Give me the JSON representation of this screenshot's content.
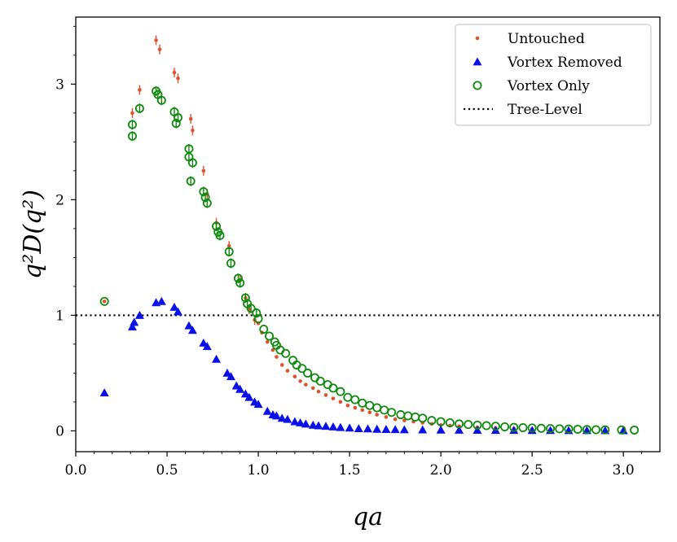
{
  "chart_data": {
    "type": "scatter",
    "xlabel": "qa",
    "ylabel": "q²D(q²)",
    "xlim": [
      0.0,
      3.2
    ],
    "ylim": [
      -0.18,
      3.58
    ],
    "xticks": [
      0.0,
      0.5,
      1.0,
      1.5,
      2.0,
      2.5,
      3.0
    ],
    "xtick_labels": [
      "0.0",
      "0.5",
      "1.0",
      "1.5",
      "2.0",
      "2.5",
      "3.0"
    ],
    "yticks": [
      0,
      1,
      2,
      3
    ],
    "ytick_labels": [
      "0",
      "1",
      "2",
      "3"
    ],
    "legend_position": "top-right",
    "reference_line": {
      "name": "Tree-Level",
      "y": 1.0,
      "style": "dotted",
      "color": "#000000"
    },
    "series": [
      {
        "name": "Untouched",
        "marker": "dot",
        "color": "#e0522e",
        "points": [
          [
            0.157,
            1.12
          ],
          [
            0.31,
            2.75
          ],
          [
            0.35,
            2.95
          ],
          [
            0.44,
            3.38
          ],
          [
            0.46,
            3.3
          ],
          [
            0.54,
            3.1
          ],
          [
            0.56,
            3.05
          ],
          [
            0.63,
            2.7
          ],
          [
            0.64,
            2.6
          ],
          [
            0.7,
            2.25
          ],
          [
            0.72,
            2.05
          ],
          [
            0.77,
            1.8
          ],
          [
            0.84,
            1.6
          ],
          [
            0.9,
            1.3
          ],
          [
            0.93,
            1.15
          ],
          [
            0.95,
            1.05
          ],
          [
            0.98,
            0.96
          ],
          [
            1.0,
            0.93
          ],
          [
            1.02,
            0.85
          ],
          [
            1.05,
            0.77
          ],
          [
            1.08,
            0.7
          ],
          [
            1.1,
            0.64
          ],
          [
            1.13,
            0.57
          ],
          [
            1.16,
            0.52
          ],
          [
            1.2,
            0.47
          ],
          [
            1.23,
            0.43
          ],
          [
            1.26,
            0.4
          ],
          [
            1.3,
            0.37
          ],
          [
            1.33,
            0.34
          ],
          [
            1.37,
            0.31
          ],
          [
            1.41,
            0.28
          ],
          [
            1.45,
            0.25
          ],
          [
            1.49,
            0.22
          ],
          [
            1.53,
            0.2
          ],
          [
            1.57,
            0.18
          ],
          [
            1.61,
            0.16
          ],
          [
            1.65,
            0.14
          ],
          [
            1.7,
            0.12
          ],
          [
            1.75,
            0.1
          ],
          [
            1.8,
            0.09
          ],
          [
            1.85,
            0.08
          ],
          [
            1.9,
            0.07
          ],
          [
            1.95,
            0.06
          ],
          [
            2.0,
            0.05
          ],
          [
            2.05,
            0.045
          ],
          [
            2.1,
            0.04
          ],
          [
            2.2,
            0.03
          ],
          [
            2.3,
            0.025
          ],
          [
            2.4,
            0.02
          ],
          [
            2.5,
            0.015
          ],
          [
            2.6,
            0.012
          ],
          [
            2.7,
            0.01
          ],
          [
            2.8,
            0.008
          ],
          [
            2.9,
            0.006
          ],
          [
            3.0,
            0.005
          ]
        ]
      },
      {
        "name": "Vortex Removed",
        "marker": "triangle",
        "color": "#0a10e8",
        "points": [
          [
            0.157,
            0.33
          ],
          [
            0.31,
            0.9
          ],
          [
            0.32,
            0.94
          ],
          [
            0.35,
            1.0
          ],
          [
            0.44,
            1.11
          ],
          [
            0.47,
            1.12
          ],
          [
            0.54,
            1.07
          ],
          [
            0.56,
            1.03
          ],
          [
            0.62,
            0.91
          ],
          [
            0.64,
            0.87
          ],
          [
            0.7,
            0.76
          ],
          [
            0.72,
            0.73
          ],
          [
            0.77,
            0.62
          ],
          [
            0.83,
            0.5
          ],
          [
            0.85,
            0.47
          ],
          [
            0.88,
            0.39
          ],
          [
            0.9,
            0.36
          ],
          [
            0.93,
            0.32
          ],
          [
            0.95,
            0.29
          ],
          [
            0.98,
            0.25
          ],
          [
            1.0,
            0.23
          ],
          [
            1.05,
            0.17
          ],
          [
            1.08,
            0.14
          ],
          [
            1.1,
            0.13
          ],
          [
            1.13,
            0.11
          ],
          [
            1.16,
            0.1
          ],
          [
            1.2,
            0.08
          ],
          [
            1.23,
            0.07
          ],
          [
            1.26,
            0.06
          ],
          [
            1.3,
            0.05
          ],
          [
            1.33,
            0.045
          ],
          [
            1.37,
            0.04
          ],
          [
            1.41,
            0.035
          ],
          [
            1.45,
            0.03
          ],
          [
            1.5,
            0.025
          ],
          [
            1.55,
            0.02
          ],
          [
            1.6,
            0.018
          ],
          [
            1.65,
            0.015
          ],
          [
            1.7,
            0.013
          ],
          [
            1.75,
            0.012
          ],
          [
            1.8,
            0.01
          ],
          [
            1.9,
            0.009
          ],
          [
            2.0,
            0.008
          ],
          [
            2.1,
            0.007
          ],
          [
            2.2,
            0.006
          ],
          [
            2.3,
            0.005
          ],
          [
            2.4,
            0.005
          ],
          [
            2.5,
            0.004
          ],
          [
            2.6,
            0.004
          ],
          [
            2.7,
            0.003
          ],
          [
            2.8,
            0.003
          ],
          [
            2.9,
            0.003
          ],
          [
            3.0,
            0.002
          ]
        ]
      },
      {
        "name": "Vortex Only",
        "marker": "circle",
        "color": "#0e8a0e",
        "points": [
          [
            0.157,
            1.12
          ],
          [
            0.31,
            2.55
          ],
          [
            0.31,
            2.65
          ],
          [
            0.35,
            2.79
          ],
          [
            0.44,
            2.94
          ],
          [
            0.45,
            2.91
          ],
          [
            0.47,
            2.86
          ],
          [
            0.54,
            2.76
          ],
          [
            0.55,
            2.66
          ],
          [
            0.56,
            2.71
          ],
          [
            0.62,
            2.44
          ],
          [
            0.62,
            2.37
          ],
          [
            0.63,
            2.16
          ],
          [
            0.64,
            2.32
          ],
          [
            0.7,
            2.07
          ],
          [
            0.71,
            2.02
          ],
          [
            0.72,
            1.97
          ],
          [
            0.77,
            1.77
          ],
          [
            0.78,
            1.72
          ],
          [
            0.79,
            1.69
          ],
          [
            0.84,
            1.55
          ],
          [
            0.85,
            1.45
          ],
          [
            0.89,
            1.32
          ],
          [
            0.9,
            1.28
          ],
          [
            0.93,
            1.15
          ],
          [
            0.94,
            1.1
          ],
          [
            0.96,
            1.06
          ],
          [
            0.99,
            1.02
          ],
          [
            1.0,
            0.97
          ],
          [
            1.03,
            0.88
          ],
          [
            1.06,
            0.82
          ],
          [
            1.09,
            0.77
          ],
          [
            1.1,
            0.74
          ],
          [
            1.12,
            0.7
          ],
          [
            1.15,
            0.67
          ],
          [
            1.19,
            0.61
          ],
          [
            1.21,
            0.57
          ],
          [
            1.24,
            0.54
          ],
          [
            1.27,
            0.5
          ],
          [
            1.31,
            0.46
          ],
          [
            1.34,
            0.43
          ],
          [
            1.38,
            0.4
          ],
          [
            1.41,
            0.37
          ],
          [
            1.45,
            0.34
          ],
          [
            1.49,
            0.29
          ],
          [
            1.53,
            0.27
          ],
          [
            1.57,
            0.24
          ],
          [
            1.61,
            0.22
          ],
          [
            1.65,
            0.2
          ],
          [
            1.69,
            0.18
          ],
          [
            1.73,
            0.16
          ],
          [
            1.78,
            0.14
          ],
          [
            1.82,
            0.13
          ],
          [
            1.86,
            0.12
          ],
          [
            1.9,
            0.11
          ],
          [
            1.95,
            0.09
          ],
          [
            2.0,
            0.08
          ],
          [
            2.05,
            0.07
          ],
          [
            2.1,
            0.06
          ],
          [
            2.15,
            0.055
          ],
          [
            2.2,
            0.05
          ],
          [
            2.25,
            0.045
          ],
          [
            2.3,
            0.04
          ],
          [
            2.35,
            0.035
          ],
          [
            2.4,
            0.03
          ],
          [
            2.45,
            0.028
          ],
          [
            2.5,
            0.025
          ],
          [
            2.55,
            0.022
          ],
          [
            2.6,
            0.02
          ],
          [
            2.65,
            0.018
          ],
          [
            2.7,
            0.016
          ],
          [
            2.75,
            0.014
          ],
          [
            2.8,
            0.012
          ],
          [
            2.85,
            0.01
          ],
          [
            2.9,
            0.009
          ],
          [
            2.99,
            0.008
          ],
          [
            3.06,
            0.007
          ]
        ]
      }
    ]
  }
}
